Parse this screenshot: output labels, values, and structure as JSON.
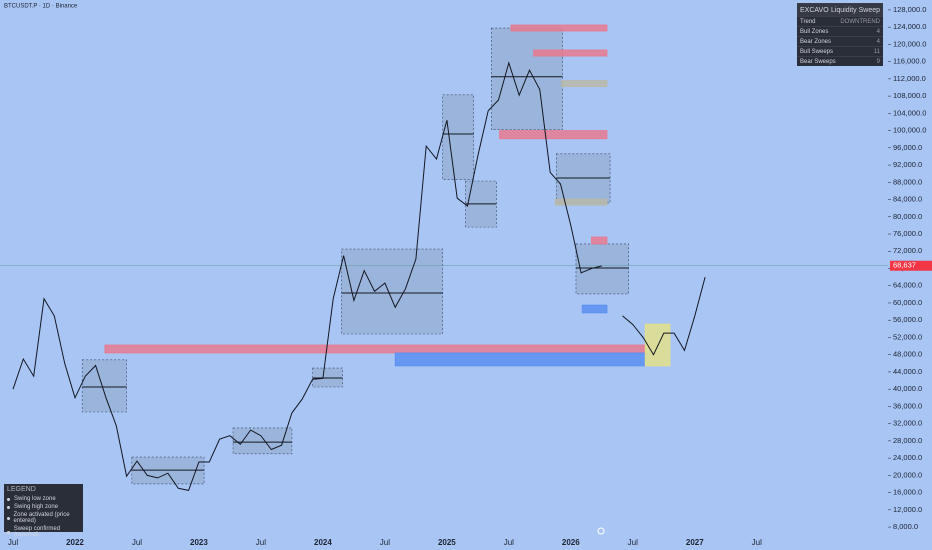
{
  "header": {
    "title": "BTCUSDT.P · 1D · Binance"
  },
  "chart_data": {
    "type": "line",
    "categories": [
      "Jul",
      null,
      null,
      null,
      null,
      null,
      "2022",
      null,
      null,
      null,
      null,
      null,
      "Jul",
      null,
      null,
      null,
      null,
      null,
      "2023",
      null,
      null,
      null,
      null,
      null,
      "Jul",
      null,
      null,
      null,
      null,
      null,
      "2024",
      null,
      null,
      null,
      null,
      null,
      "Jul",
      null,
      null,
      null,
      null,
      null,
      "2025",
      null,
      null,
      null,
      null,
      null,
      "Jul",
      null,
      null,
      null,
      null,
      null,
      "2026",
      null,
      null,
      null,
      null,
      null,
      "Jul",
      null,
      null,
      null,
      null,
      null,
      "2027",
      null,
      null,
      null,
      null,
      null,
      "Jul"
    ],
    "series": [
      {
        "color": "#131722",
        "values": [
          40000,
          47000,
          43000,
          61000,
          57000,
          46000,
          38000,
          43000,
          45500,
          38000,
          31500,
          19800,
          23300,
          20000,
          19400,
          20500,
          17000,
          16500,
          23100,
          23100,
          28400,
          29200,
          27200,
          30500,
          29200,
          26000,
          27000,
          34500,
          37700,
          42300,
          42500,
          61000,
          71000,
          60600,
          67500,
          62700,
          64600,
          59000,
          63300,
          70200,
          96400,
          93400,
          102400,
          84300,
          82500,
          94200,
          104600,
          107100,
          115700,
          108200,
          114000,
          109500,
          90300,
          87600,
          78000,
          67000,
          68000,
          68600,
          null,
          null,
          null,
          null,
          null,
          null,
          null,
          null,
          null,
          null,
          null,
          null,
          null,
          null,
          null
        ]
      },
      {
        "color": "#131722",
        "values": [
          null,
          null,
          null,
          null,
          null,
          null,
          null,
          null,
          null,
          null,
          null,
          null,
          null,
          null,
          null,
          null,
          null,
          null,
          null,
          null,
          null,
          null,
          null,
          null,
          null,
          null,
          null,
          null,
          null,
          null,
          null,
          null,
          null,
          null,
          null,
          null,
          null,
          null,
          null,
          null,
          null,
          null,
          null,
          null,
          null,
          null,
          null,
          null,
          null,
          null,
          null,
          null,
          null,
          null,
          null,
          null,
          null,
          null,
          null,
          57000,
          55000,
          52000,
          48000,
          53000,
          53000,
          49000,
          57000,
          66000,
          null,
          null,
          null,
          null,
          null
        ]
      }
    ],
    "zones": [
      {
        "x0": 8.9,
        "x1": 61.2,
        "y0": 48400,
        "y1": 50250,
        "color": "#e8798f"
      },
      {
        "x0": 37.0,
        "x1": 61.2,
        "y0": 45400,
        "y1": 48400,
        "color": "#5b8ff0"
      },
      {
        "x0": 61.2,
        "x1": 63.6,
        "y0": 45400,
        "y1": 55100,
        "color": "#e3e08a"
      },
      {
        "x0": 6.7,
        "x1": 11.0,
        "y0": 34700,
        "y1": 46800,
        "color": "#8fa6c8",
        "mid": 40500
      },
      {
        "x0": 11.5,
        "x1": 18.5,
        "y0": 18000,
        "y1": 24250,
        "color": "#8fa6c8",
        "mid": 21200
      },
      {
        "x0": 21.3,
        "x1": 27.0,
        "y0": 25000,
        "y1": 31000,
        "color": "#8fa6c8",
        "mid": 27700
      },
      {
        "x0": 29.0,
        "x1": 31.9,
        "y0": 40500,
        "y1": 44900,
        "color": "#8fa6c8",
        "mid": 42600
      },
      {
        "x0": 31.8,
        "x1": 41.6,
        "y0": 52800,
        "y1": 72500,
        "color": "#8fa6c8",
        "mid": 62300
      },
      {
        "x0": 41.6,
        "x1": 44.6,
        "y0": 88600,
        "y1": 108300,
        "color": "#8fa6c8",
        "mid": 99200
      },
      {
        "x0": 43.8,
        "x1": 46.8,
        "y0": 77600,
        "y1": 88300,
        "color": "#8fa6c8",
        "mid": 83000
      },
      {
        "x0": 46.3,
        "x1": 53.2,
        "y0": 100200,
        "y1": 123800,
        "color": "#8fa6c8",
        "mid": 112500
      },
      {
        "x0": 52.6,
        "x1": 57.8,
        "y0": 83200,
        "y1": 94600,
        "color": "#8fa6c8",
        "mid": 89000
      },
      {
        "x0": 54.5,
        "x1": 59.6,
        "y0": 62100,
        "y1": 73700,
        "color": "#8fa6c8",
        "mid": 68100
      },
      {
        "x0": 48.2,
        "x1": 57.5,
        "y0": 123100,
        "y1": 124500,
        "color": "#e8798f"
      },
      {
        "x0": 50.4,
        "x1": 57.5,
        "y0": 117300,
        "y1": 118700,
        "color": "#e8798f"
      },
      {
        "x0": 47.1,
        "x1": 57.5,
        "y0": 98100,
        "y1": 100000,
        "color": "#e8798f"
      },
      {
        "x0": 56.0,
        "x1": 57.5,
        "y0": 73700,
        "y1": 75300,
        "color": "#e8798f"
      },
      {
        "x0": 55.1,
        "x1": 57.5,
        "y0": 57700,
        "y1": 59500,
        "color": "#5b8ff0"
      },
      {
        "x0": 53.1,
        "x1": 57.5,
        "y0": 110200,
        "y1": 111600,
        "color": "#b8b8a8"
      },
      {
        "x0": 52.5,
        "x1": 57.5,
        "y0": 82700,
        "y1": 84100,
        "color": "#b8b8a8"
      }
    ],
    "ylim": [
      5000,
      130300
    ],
    "yticks": [
      {
        "value": 8000,
        "label": "8,000.0"
      },
      {
        "value": 12000,
        "label": "12,000.0"
      },
      {
        "value": 16000,
        "label": "16,000.0"
      },
      {
        "value": 20000,
        "label": "20,000.0"
      },
      {
        "value": 24000,
        "label": "24,000.0"
      },
      {
        "value": 28000,
        "label": "28,000.0"
      },
      {
        "value": 32000,
        "label": "32,000.0"
      },
      {
        "value": 36000,
        "label": "36,000.0"
      },
      {
        "value": 40000,
        "label": "40,000.0"
      },
      {
        "value": 44000,
        "label": "44,000.0"
      },
      {
        "value": 48000,
        "label": "48,000.0"
      },
      {
        "value": 52000,
        "label": "52,000.0"
      },
      {
        "value": 56000,
        "label": "56,000.0"
      },
      {
        "value": 60000,
        "label": "60,000.0"
      },
      {
        "value": 64000,
        "label": "64,000.0"
      },
      {
        "value": 68000,
        "label": "68,000.0"
      },
      {
        "value": 72000,
        "label": "72,000.0"
      },
      {
        "value": 76000,
        "label": "76,000.0"
      },
      {
        "value": 80000,
        "label": "80,000.0"
      },
      {
        "value": 84000,
        "label": "84,000.0"
      },
      {
        "value": 88000,
        "label": "88,000.0"
      },
      {
        "value": 92000,
        "label": "92,000.0"
      },
      {
        "value": 96000,
        "label": "96,000.0"
      },
      {
        "value": 100000,
        "label": "100,000.0"
      },
      {
        "value": 104000,
        "label": "104,000.0"
      },
      {
        "value": 108000,
        "label": "108,000.0"
      },
      {
        "value": 112000,
        "label": "112,000.0"
      },
      {
        "value": 116000,
        "label": "116,000.0"
      },
      {
        "value": 120000,
        "label": "120,000.0"
      },
      {
        "value": 124000,
        "label": "124,000.0"
      },
      {
        "value": 128000,
        "label": "128,000.0"
      }
    ],
    "current_price": {
      "value": 68637,
      "label": "68,637"
    },
    "grid": false
  },
  "legend": {
    "title": "LEGEND",
    "items": [
      "Swing low zone",
      "Swing high zone",
      "Zone activated (price entered)",
      "Sweep confirmed (reversal)"
    ]
  },
  "info": {
    "title": "EXCAVO",
    "subtitle": "Liquidity Sweep",
    "rows": [
      [
        "Trend",
        "DOWNTREND"
      ],
      [
        "Bull Zones",
        "4"
      ],
      [
        "Bear Zones",
        "4"
      ],
      [
        "Bull Sweeps",
        "11"
      ],
      [
        "Bear Sweeps",
        "9"
      ]
    ]
  }
}
